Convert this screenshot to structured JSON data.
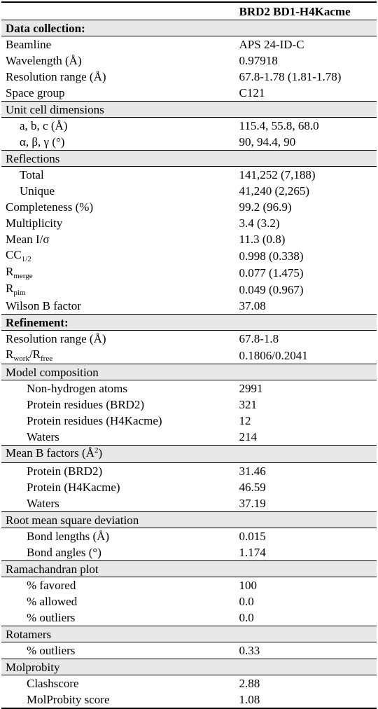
{
  "header": {
    "col2": "BRD2 BD1-H4Kacme"
  },
  "sections": {
    "data_collection": "Data collection:",
    "unit_cell": "Unit cell dimensions",
    "reflections": "Reflections",
    "refinement": "Refinement:",
    "model_composition": "Model composition",
    "mean_b_pre": "Mean B factors (Å",
    "mean_b_sup": "2",
    "mean_b_post": ")",
    "rmsd": "Root mean square deviation",
    "ramachandran": "Ramachandran plot",
    "rotamers": "Rotamers",
    "molprobity": "Molprobity"
  },
  "rows": {
    "beamline": {
      "label": "Beamline",
      "value": "APS 24-ID-C"
    },
    "wavelength": {
      "label": "Wavelength (Å)",
      "value": "0.97918"
    },
    "resolution": {
      "label": "Resolution range (Å)",
      "value": "67.8-1.78 (1.81-1.78)"
    },
    "space_group": {
      "label": "Space group",
      "value": "C121"
    },
    "abc": {
      "label": "a, b, c (Å)",
      "value": "115.4, 55.8, 68.0"
    },
    "angles": {
      "label": "α, β, γ (°)",
      "value": "90, 94.4, 90"
    },
    "total": {
      "label": "Total",
      "value": "141,252 (7,188)"
    },
    "unique": {
      "label": "Unique",
      "value": "41,240 (2,265)"
    },
    "completeness": {
      "label": "Completeness (%)",
      "value": "99.2 (96.9)"
    },
    "multiplicity": {
      "label": "Multiplicity",
      "value": "3.4 (3.2)"
    },
    "mean_i": {
      "label": "Mean I/σ",
      "value": "11.3 (0.8)"
    },
    "cc_half": {
      "label_main": "CC",
      "label_sub": "1/2",
      "value": "0.998 (0.338)"
    },
    "rmerge": {
      "label_main": "R",
      "label_sub": "merge",
      "value": "0.077 (1.475)"
    },
    "rpim": {
      "label_main": "R",
      "label_sub": "pim",
      "value": "0.049 (0.967)"
    },
    "wilson": {
      "label": "Wilson B factor",
      "value": "37.08"
    },
    "ref_resolution": {
      "label": "Resolution range (Å)",
      "value": "67.8-1.8"
    },
    "rwork_rfree": {
      "r1": "R",
      "s1": "work",
      "slash": "/R",
      "s2": "free",
      "value": "0.1806/0.2041"
    },
    "non_h_atoms": {
      "label": "Non-hydrogen atoms",
      "value": "2991"
    },
    "protein_res_brd2": {
      "label": "Protein residues (BRD2)",
      "value": "321"
    },
    "protein_res_h4": {
      "label": "Protein residues (H4Kacme)",
      "value": "12"
    },
    "waters_count": {
      "label": "Waters",
      "value": "214"
    },
    "b_protein_brd2": {
      "label": "Protein (BRD2)",
      "value": "31.46"
    },
    "b_protein_h4": {
      "label": "Protein (H4Kacme)",
      "value": "46.59"
    },
    "b_waters": {
      "label": "Waters",
      "value": "37.19"
    },
    "bond_lengths": {
      "label": "Bond lengths (Å)",
      "value": "0.015"
    },
    "bond_angles": {
      "label": "Bond angles (°)",
      "value": "1.174"
    },
    "favored": {
      "label": "% favored",
      "value": "100"
    },
    "allowed": {
      "label": "% allowed",
      "value": "0.0"
    },
    "rama_outliers": {
      "label": "% outliers",
      "value": "0.0"
    },
    "rot_outliers": {
      "label": "% outliers",
      "value": "0.33"
    },
    "clashscore": {
      "label": "Clashscore",
      "value": "2.88"
    },
    "molprobity_score": {
      "label": "MolProbity score",
      "value": "1.08"
    }
  }
}
